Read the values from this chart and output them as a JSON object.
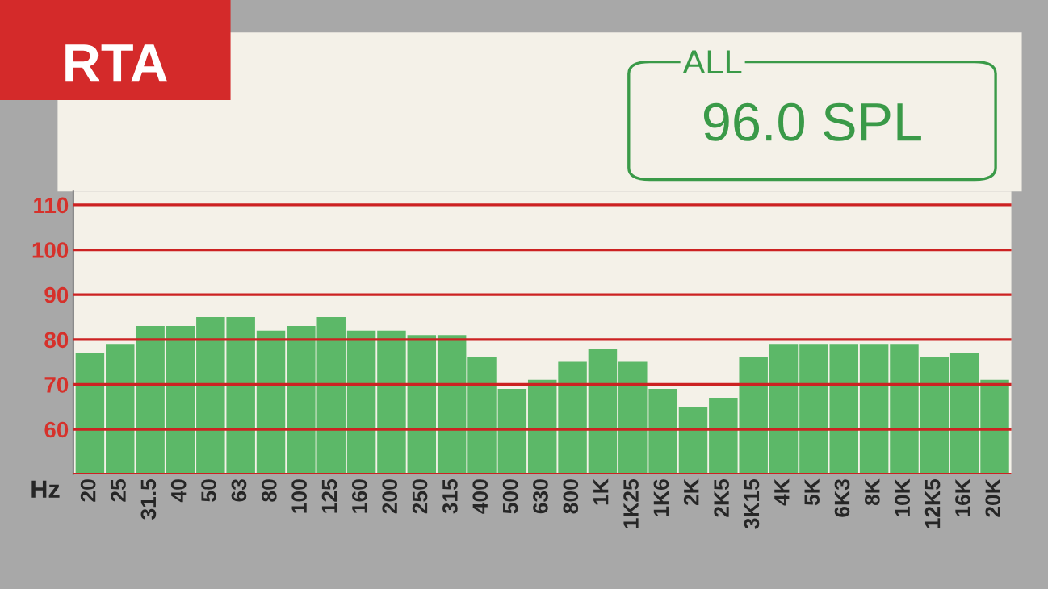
{
  "chart_data": {
    "type": "bar",
    "title": "RTA",
    "xlabel": "Hz",
    "annotations": [
      "ALL",
      "96.0 SPL"
    ],
    "categories": [
      "20",
      "25",
      "31.5",
      "40",
      "50",
      "63",
      "80",
      "100",
      "125",
      "160",
      "200",
      "250",
      "315",
      "400",
      "500",
      "630",
      "800",
      "1K",
      "1K25",
      "1K6",
      "2K",
      "2K5",
      "3K15",
      "4K",
      "5K",
      "6K3",
      "8K",
      "10K",
      "12K5",
      "16K",
      "20K"
    ],
    "values": [
      77,
      79,
      83,
      83,
      85,
      85,
      82,
      83,
      85,
      82,
      82,
      81,
      81,
      76,
      69,
      71,
      75,
      78,
      75,
      69,
      65,
      67,
      76,
      79,
      79,
      79,
      79,
      79,
      76,
      77,
      71
    ],
    "color": "#5cb868",
    "ylim": [
      50,
      113
    ],
    "yticks": [
      {
        "value": 50,
        "label": null
      },
      60,
      70,
      80,
      90,
      100,
      110
    ],
    "grid": "y"
  }
}
